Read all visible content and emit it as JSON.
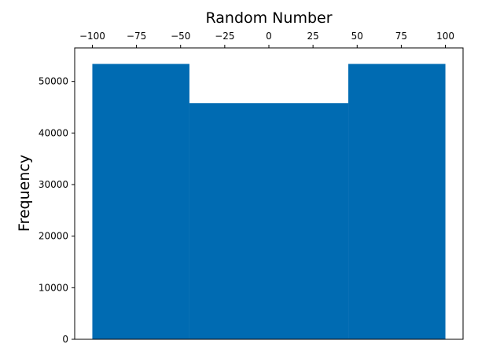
{
  "chart_data": {
    "type": "bar",
    "title": "",
    "xlabel": "Random Number",
    "ylabel": "Frequency",
    "xaxis_position": "top",
    "xlim": [
      -110,
      110
    ],
    "ylim": [
      0,
      56500
    ],
    "xticks": [
      -100,
      -75,
      -50,
      -25,
      0,
      25,
      50,
      75,
      100
    ],
    "xtick_labels": [
      "−100",
      "−75",
      "−50",
      "−25",
      "0",
      "25",
      "50",
      "75",
      "100"
    ],
    "yticks": [
      0,
      10000,
      20000,
      30000,
      40000,
      50000
    ],
    "ytick_labels": [
      "0",
      "10000",
      "20000",
      "30000",
      "40000",
      "50000"
    ],
    "bar_color": "#006bb2",
    "grid": false,
    "bins": [
      {
        "x0": -100,
        "x1": -45,
        "value": 53400
      },
      {
        "x0": -45,
        "x1": 45,
        "value": 45800
      },
      {
        "x0": 45,
        "x1": 100,
        "value": 53400
      }
    ]
  }
}
